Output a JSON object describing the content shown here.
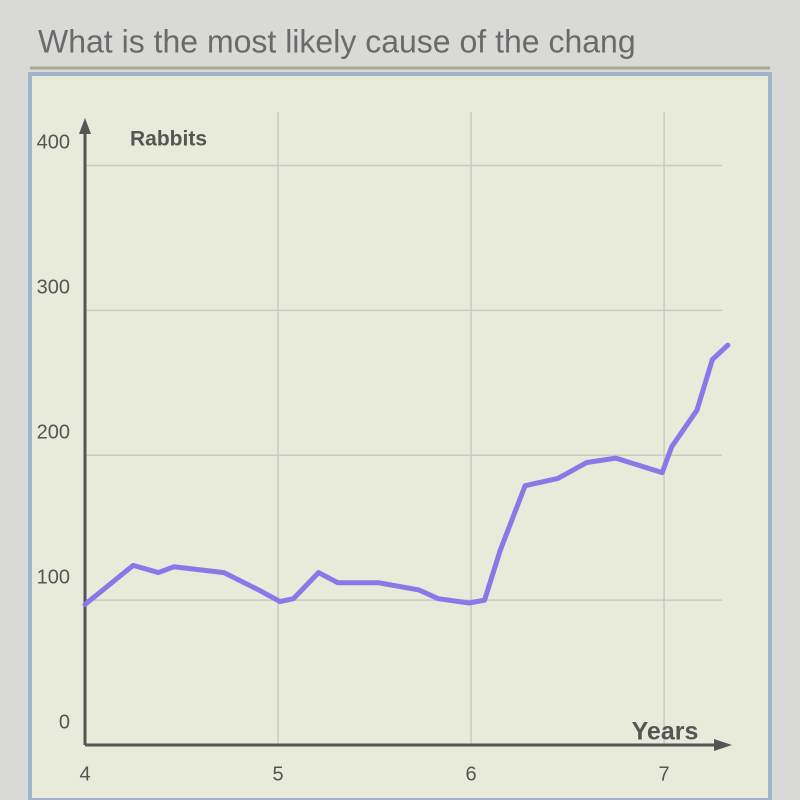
{
  "question": "What is the most likely cause of the chang",
  "chart_data": {
    "type": "line",
    "x_label": "Years",
    "y_label": "Rabbits",
    "x": [
      4.0,
      4.12,
      4.25,
      4.38,
      4.46,
      4.72,
      4.9,
      5.01,
      5.08,
      5.21,
      5.31,
      5.52,
      5.73,
      5.83,
      5.99,
      6.07,
      6.15,
      6.28,
      6.45,
      6.6,
      6.75,
      6.99,
      7.04,
      7.17,
      7.25,
      7.33
    ],
    "series": [
      {
        "color": "#8878e8",
        "values": [
          97,
          110,
          124,
          119,
          123,
          119,
          107,
          99,
          101,
          119,
          112,
          112,
          107,
          101,
          98,
          100,
          134,
          179,
          184,
          195,
          198,
          188,
          206,
          231,
          266,
          276
        ]
      }
    ],
    "xlim": [
      4,
      7.3
    ],
    "ylim": [
      0,
      430
    ],
    "xticks": [
      4,
      5,
      6,
      7
    ],
    "yticks": [
      0,
      100,
      200,
      300,
      400
    ],
    "grid": true
  }
}
